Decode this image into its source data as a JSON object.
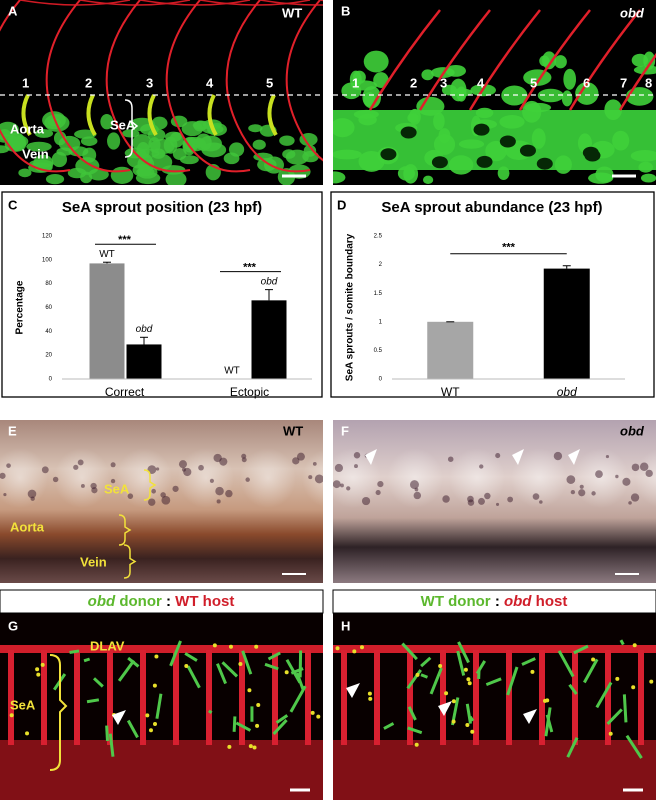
{
  "panels": {
    "A": {
      "letter": "A",
      "genotype": "WT",
      "numbers": [
        "1",
        "2",
        "3",
        "4",
        "5"
      ],
      "sea": "SeA",
      "aorta": "Aorta",
      "vein": "Vein"
    },
    "B": {
      "letter": "B",
      "genotype": "obd",
      "numbers": [
        "1",
        "2",
        "3",
        "4",
        "5",
        "6",
        "7",
        "8"
      ]
    },
    "C": {
      "letter": "C"
    },
    "D": {
      "letter": "D"
    },
    "E": {
      "letter": "E",
      "genotype": "WT",
      "sea": "SeA",
      "aorta": "Aorta",
      "vein": "Vein"
    },
    "F": {
      "letter": "F",
      "genotype": "obd"
    },
    "G": {
      "letter": "G",
      "header": [
        "obd",
        "donor",
        ":",
        "WT host"
      ],
      "dlav": "DLAV",
      "sea": "SeA"
    },
    "H": {
      "letter": "H",
      "header": [
        "WT donor",
        ":",
        "obd",
        "host"
      ]
    }
  },
  "chart_data": [
    {
      "type": "bar",
      "title": "SeA sprout position (23 hpf)",
      "ylabel": "Percentage",
      "categories": [
        "Correct",
        "Ectopic"
      ],
      "series": [
        {
          "name": "WT",
          "color": "#8c8c8c",
          "values": [
            97,
            0
          ],
          "errors": [
            1,
            0
          ]
        },
        {
          "name": "obd",
          "color": "#000000",
          "values": [
            29,
            66
          ],
          "errors": [
            6,
            9
          ],
          "italic": true
        }
      ],
      "ylim": [
        0,
        120
      ],
      "yticks": [
        0,
        20,
        40,
        60,
        80,
        100,
        120
      ],
      "annotations": [
        "***",
        "***"
      ]
    },
    {
      "type": "bar",
      "title": "SeA sprout abundance (23 hpf)",
      "ylabel": "SeA sprouts / somite boundary",
      "categories": [
        "WT",
        "obd"
      ],
      "italic_categories": [
        false,
        true
      ],
      "values": [
        1,
        1.93
      ],
      "errors": [
        0,
        0.05
      ],
      "colors": [
        "#a6a6a6",
        "#000000"
      ],
      "ylim": [
        0,
        2.5
      ],
      "yticks": [
        0,
        0.5,
        1,
        1.5,
        2,
        2.5
      ],
      "annotations": [
        "***"
      ]
    }
  ]
}
